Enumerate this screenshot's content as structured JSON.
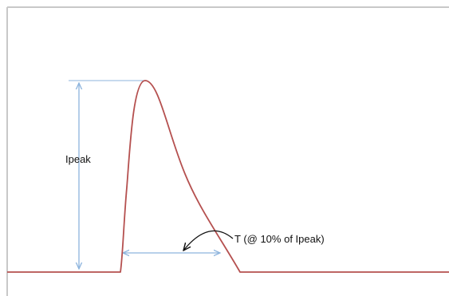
{
  "diagram": {
    "peak_label": "Ipeak",
    "pulse_width_label": "T (@ 10% of Ipeak)",
    "colors": {
      "waveform": "#b5504f",
      "dimension": "#8db4dd",
      "frame": "#c8c8c8",
      "annotation_arrow": "#111111"
    },
    "icons": [
      "double-headed-arrow",
      "curved-callout-arrow"
    ]
  }
}
